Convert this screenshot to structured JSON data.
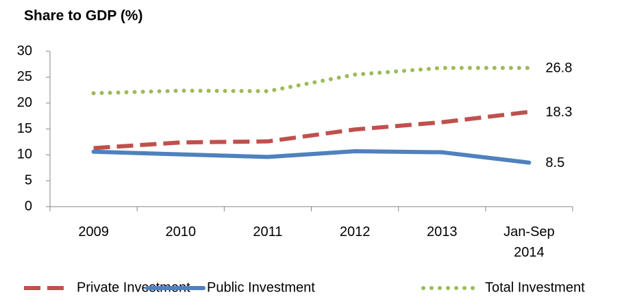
{
  "chart_data": {
    "type": "line",
    "title": "Share to GDP (%)",
    "categories": [
      "2009",
      "2010",
      "2011",
      "2012",
      "2013",
      "Jan-Sep 2014"
    ],
    "series": [
      {
        "name": "Private Investment",
        "color": "#c0504d",
        "style": "dashed",
        "values": [
          11.3,
          12.4,
          12.6,
          14.9,
          16.3,
          18.3
        ]
      },
      {
        "name": "Public Investment",
        "color": "#4f81bd",
        "style": "solid",
        "values": [
          10.6,
          10.1,
          9.6,
          10.7,
          10.5,
          8.5
        ]
      },
      {
        "name": "Total Investment",
        "color": "#9bbb59",
        "style": "dotted",
        "values": [
          21.9,
          22.4,
          22.3,
          25.5,
          26.8,
          26.8
        ]
      }
    ],
    "ylim": [
      0,
      30
    ],
    "yticks": [
      0,
      5,
      10,
      15,
      20,
      25,
      30
    ],
    "grid": false,
    "legend": "bottom"
  }
}
